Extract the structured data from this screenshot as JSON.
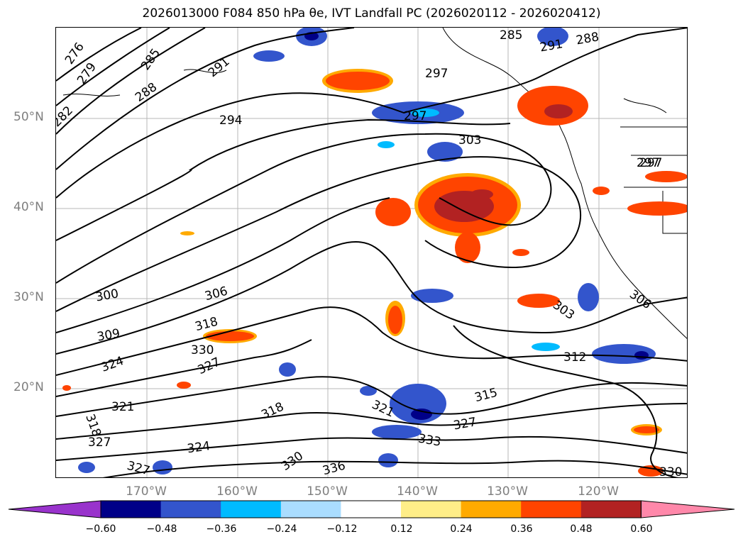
{
  "title": "2026013000 F084 850 hPa θe, IVT Landfall PC (2026020112 - 2026020412)",
  "lat_labels": [
    "50°N",
    "40°N",
    "30°N",
    "20°N"
  ],
  "lon_labels": [
    "170°W",
    "160°W",
    "150°W",
    "140°W",
    "130°W",
    "120°W"
  ],
  "contour_labels": [
    "276",
    "279",
    "282",
    "285",
    "288",
    "291",
    "294",
    "297",
    "297",
    "297",
    "300",
    "303",
    "303",
    "306",
    "306",
    "309",
    "312",
    "315",
    "318",
    "318",
    "318",
    "321",
    "321",
    "324",
    "324",
    "327",
    "327",
    "327",
    "327",
    "330",
    "330",
    "330",
    "333",
    "336",
    "297",
    "285",
    "291",
    "288"
  ],
  "colorbar": {
    "colors": [
      "#9933cc",
      "#000088",
      "#3355cc",
      "#00bbff",
      "#aaddff",
      "#ffffff",
      "#ffee88",
      "#ffaa00",
      "#ff4400",
      "#b22222",
      "#ff88aa"
    ],
    "tick_labels": [
      "−0.60",
      "−0.48",
      "−0.36",
      "−0.24",
      "−0.12",
      "0.12",
      "0.24",
      "0.36",
      "0.48",
      "0.60"
    ]
  }
}
